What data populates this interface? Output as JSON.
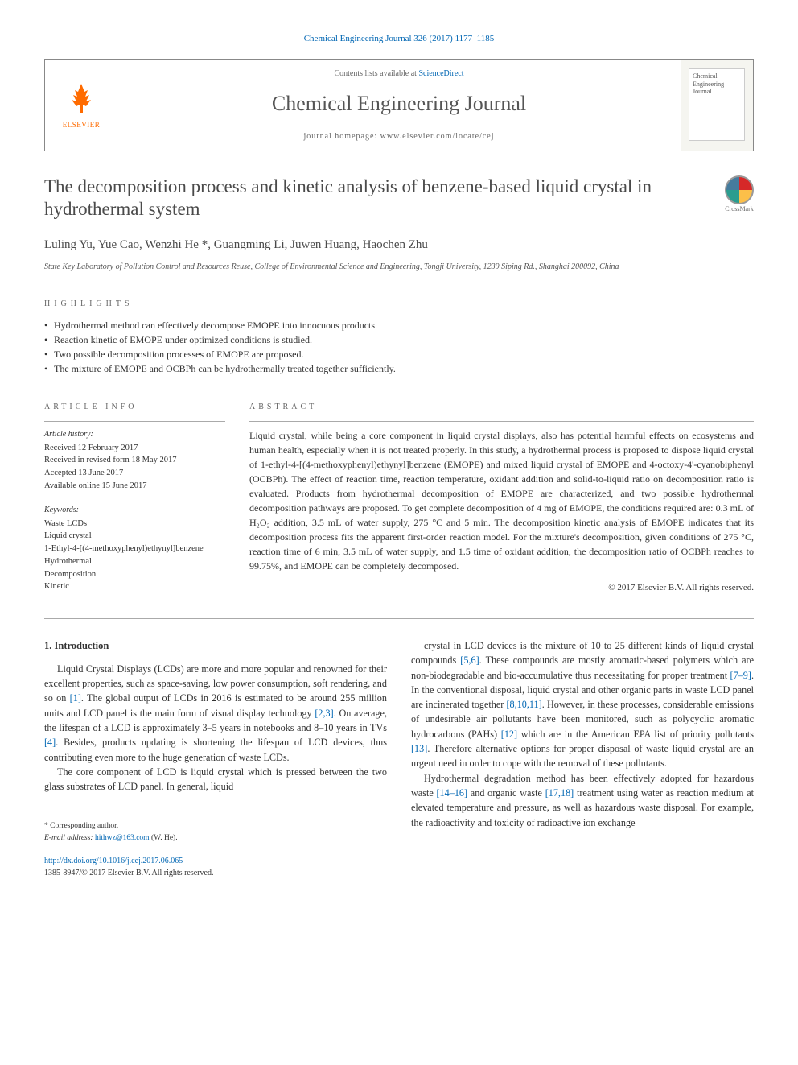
{
  "citation": "Chemical Engineering Journal 326 (2017) 1177–1185",
  "header": {
    "contents_prefix": "Contents lists available at ",
    "contents_link": "ScienceDirect",
    "journal_name": "Chemical Engineering Journal",
    "homepage_label": "journal homepage: www.elsevier.com/locate/cej",
    "elsevier": "ELSEVIER",
    "cover_text": "Chemical Engineering Journal"
  },
  "crossmark_label": "CrossMark",
  "title": "The decomposition process and kinetic analysis of benzene-based liquid crystal in hydrothermal system",
  "authors": "Luling Yu, Yue Cao, Wenzhi He *, Guangming Li, Juwen Huang, Haochen Zhu",
  "affiliation": "State Key Laboratory of Pollution Control and Resources Reuse, College of Environmental Science and Engineering, Tongji University, 1239 Siping Rd., Shanghai 200092, China",
  "highlights_label": "HIGHLIGHTS",
  "highlights": [
    "Hydrothermal method can effectively decompose EMOPE into innocuous products.",
    "Reaction kinetic of EMOPE under optimized conditions is studied.",
    "Two possible decomposition processes of EMOPE are proposed.",
    "The mixture of EMOPE and OCBPh can be hydrothermally treated together sufficiently."
  ],
  "article_info_label": "ARTICLE INFO",
  "abstract_label": "ABSTRACT",
  "history_label": "Article history:",
  "history": [
    "Received 12 February 2017",
    "Received in revised form 18 May 2017",
    "Accepted 13 June 2017",
    "Available online 15 June 2017"
  ],
  "keywords_label": "Keywords:",
  "keywords": [
    "Waste LCDs",
    "Liquid crystal",
    "1-Ethyl-4-[(4-methoxyphenyl)ethynyl]benzene",
    "Hydrothermal",
    "Decomposition",
    "Kinetic"
  ],
  "abstract": "Liquid crystal, while being a core component in liquid crystal displays, also has potential harmful effects on ecosystems and human health, especially when it is not treated properly. In this study, a hydrothermal process is proposed to dispose liquid crystal of 1-ethyl-4-[(4-methoxyphenyl)ethynyl]benzene (EMOPE) and mixed liquid crystal of EMOPE and 4-octoxy-4'-cyanobiphenyl (OCBPh). The effect of reaction time, reaction temperature, oxidant addition and solid-to-liquid ratio on decomposition ratio is evaluated. Products from hydrothermal decomposition of EMOPE are characterized, and two possible hydrothermal decomposition pathways are proposed. To get complete decomposition of 4 mg of EMOPE, the conditions required are: 0.3 mL of H₂O₂ addition, 3.5 mL of water supply, 275 °C and 5 min. The decomposition kinetic analysis of EMOPE indicates that its decomposition process fits the apparent first-order reaction model. For the mixture's decomposition, given conditions of 275 °C, reaction time of 6 min, 3.5 mL of water supply, and 1.5 time of oxidant addition, the decomposition ratio of OCBPh reaches to 99.75%, and EMOPE can be completely decomposed.",
  "copyright": "© 2017 Elsevier B.V. All rights reserved.",
  "intro_heading": "1. Introduction",
  "intro_p1": "Liquid Crystal Displays (LCDs) are more and more popular and renowned for their excellent properties, such as space-saving, low power consumption, soft rendering, and so on [1]. The global output of LCDs in 2016 is estimated to be around 255 million units and LCD panel is the main form of visual display technology [2,3]. On average, the lifespan of a LCD is approximately 3–5 years in notebooks and 8–10 years in TVs [4]. Besides, products updating is shortening the lifespan of LCD devices, thus contributing even more to the huge generation of waste LCDs.",
  "intro_p2": "The core component of LCD is liquid crystal which is pressed between the two glass substrates of LCD panel. In general, liquid",
  "intro_p3": "crystal in LCD devices is the mixture of 10 to 25 different kinds of liquid crystal compounds [5,6]. These compounds are mostly aromatic-based polymers which are non-biodegradable and bio-accumulative thus necessitating for proper treatment [7–9]. In the conventional disposal, liquid crystal and other organic parts in waste LCD panel are incinerated together [8,10,11]. However, in these processes, considerable emissions of undesirable air pollutants have been monitored, such as polycyclic aromatic hydrocarbons (PAHs) [12] which are in the American EPA list of priority pollutants [13]. Therefore alternative options for proper disposal of waste liquid crystal are an urgent need in order to cope with the removal of these pollutants.",
  "intro_p4": "Hydrothermal degradation method has been effectively adopted for hazardous waste [14–16] and organic waste [17,18] treatment using water as reaction medium at elevated temperature and pressure, as well as hazardous waste disposal. For example, the radioactivity and toxicity of radioactive ion exchange",
  "corr_label": "* Corresponding author.",
  "email_label": "E-mail address: ",
  "email": "hithwz@163.com",
  "email_suffix": " (W. He).",
  "doi": "http://dx.doi.org/10.1016/j.cej.2017.06.065",
  "issn_line": "1385-8947/© 2017 Elsevier B.V. All rights reserved.",
  "colors": {
    "link": "#0066b3",
    "elsevier_orange": "#ff6b00",
    "text": "#333333",
    "rule": "#aaaaaa"
  }
}
